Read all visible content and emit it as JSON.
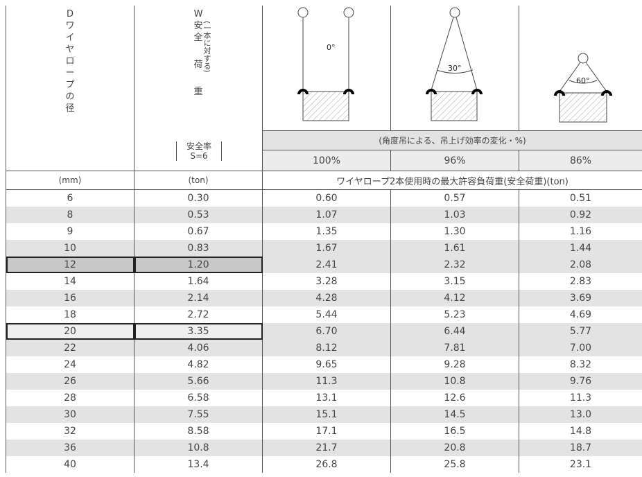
{
  "header": {
    "col1": {
      "label": "D",
      "name": [
        "ワ",
        "イ",
        "ヤ",
        "ロ",
        "ー",
        "プ",
        "の",
        "径"
      ],
      "unit": "(mm)"
    },
    "col2": {
      "label": "W",
      "name": [
        "安",
        "全",
        "荷",
        "重"
      ],
      "note": "(一本に対する)",
      "factor": [
        "安全率",
        "S=6"
      ],
      "unit": "(ton)"
    },
    "angles": [
      "0°",
      "30°",
      "60°"
    ],
    "efficiency_caption": "(角度吊による、吊上げ効率の変化・%)",
    "efficiency": [
      "100%",
      "96%",
      "86%"
    ],
    "load_caption": "ワイヤロープ2本使用時の最大許容負荷重(安全荷重)(ton)"
  },
  "table": {
    "rows": [
      [
        "6",
        "0.30",
        "0.60",
        "0.57",
        "0.51"
      ],
      [
        "8",
        "0.53",
        "1.07",
        "1.03",
        "0.92"
      ],
      [
        "9",
        "0.67",
        "1.35",
        "1.30",
        "1.16"
      ],
      [
        "10",
        "0.83",
        "1.67",
        "1.61",
        "1.44"
      ],
      [
        "12",
        "1.20",
        "2.41",
        "2.32",
        "2.08"
      ],
      [
        "14",
        "1.64",
        "3.28",
        "3.15",
        "2.83"
      ],
      [
        "16",
        "2.14",
        "4.28",
        "4.12",
        "3.69"
      ],
      [
        "18",
        "2.72",
        "5.44",
        "5.23",
        "4.69"
      ],
      [
        "20",
        "3.35",
        "6.70",
        "6.44",
        "5.77"
      ],
      [
        "22",
        "4.06",
        "8.12",
        "7.81",
        "7.00"
      ],
      [
        "24",
        "4.82",
        "9.65",
        "9.28",
        "8.32"
      ],
      [
        "26",
        "5.66",
        "11.3",
        "10.8",
        "9.76"
      ],
      [
        "28",
        "6.58",
        "13.1",
        "12.6",
        "11.3"
      ],
      [
        "30",
        "7.55",
        "15.1",
        "14.5",
        "13.0"
      ],
      [
        "32",
        "8.58",
        "17.1",
        "16.5",
        "14.8"
      ],
      [
        "36",
        "10.8",
        "21.7",
        "20.8",
        "18.7"
      ],
      [
        "40",
        "13.4",
        "26.8",
        "25.8",
        "23.1"
      ]
    ]
  }
}
